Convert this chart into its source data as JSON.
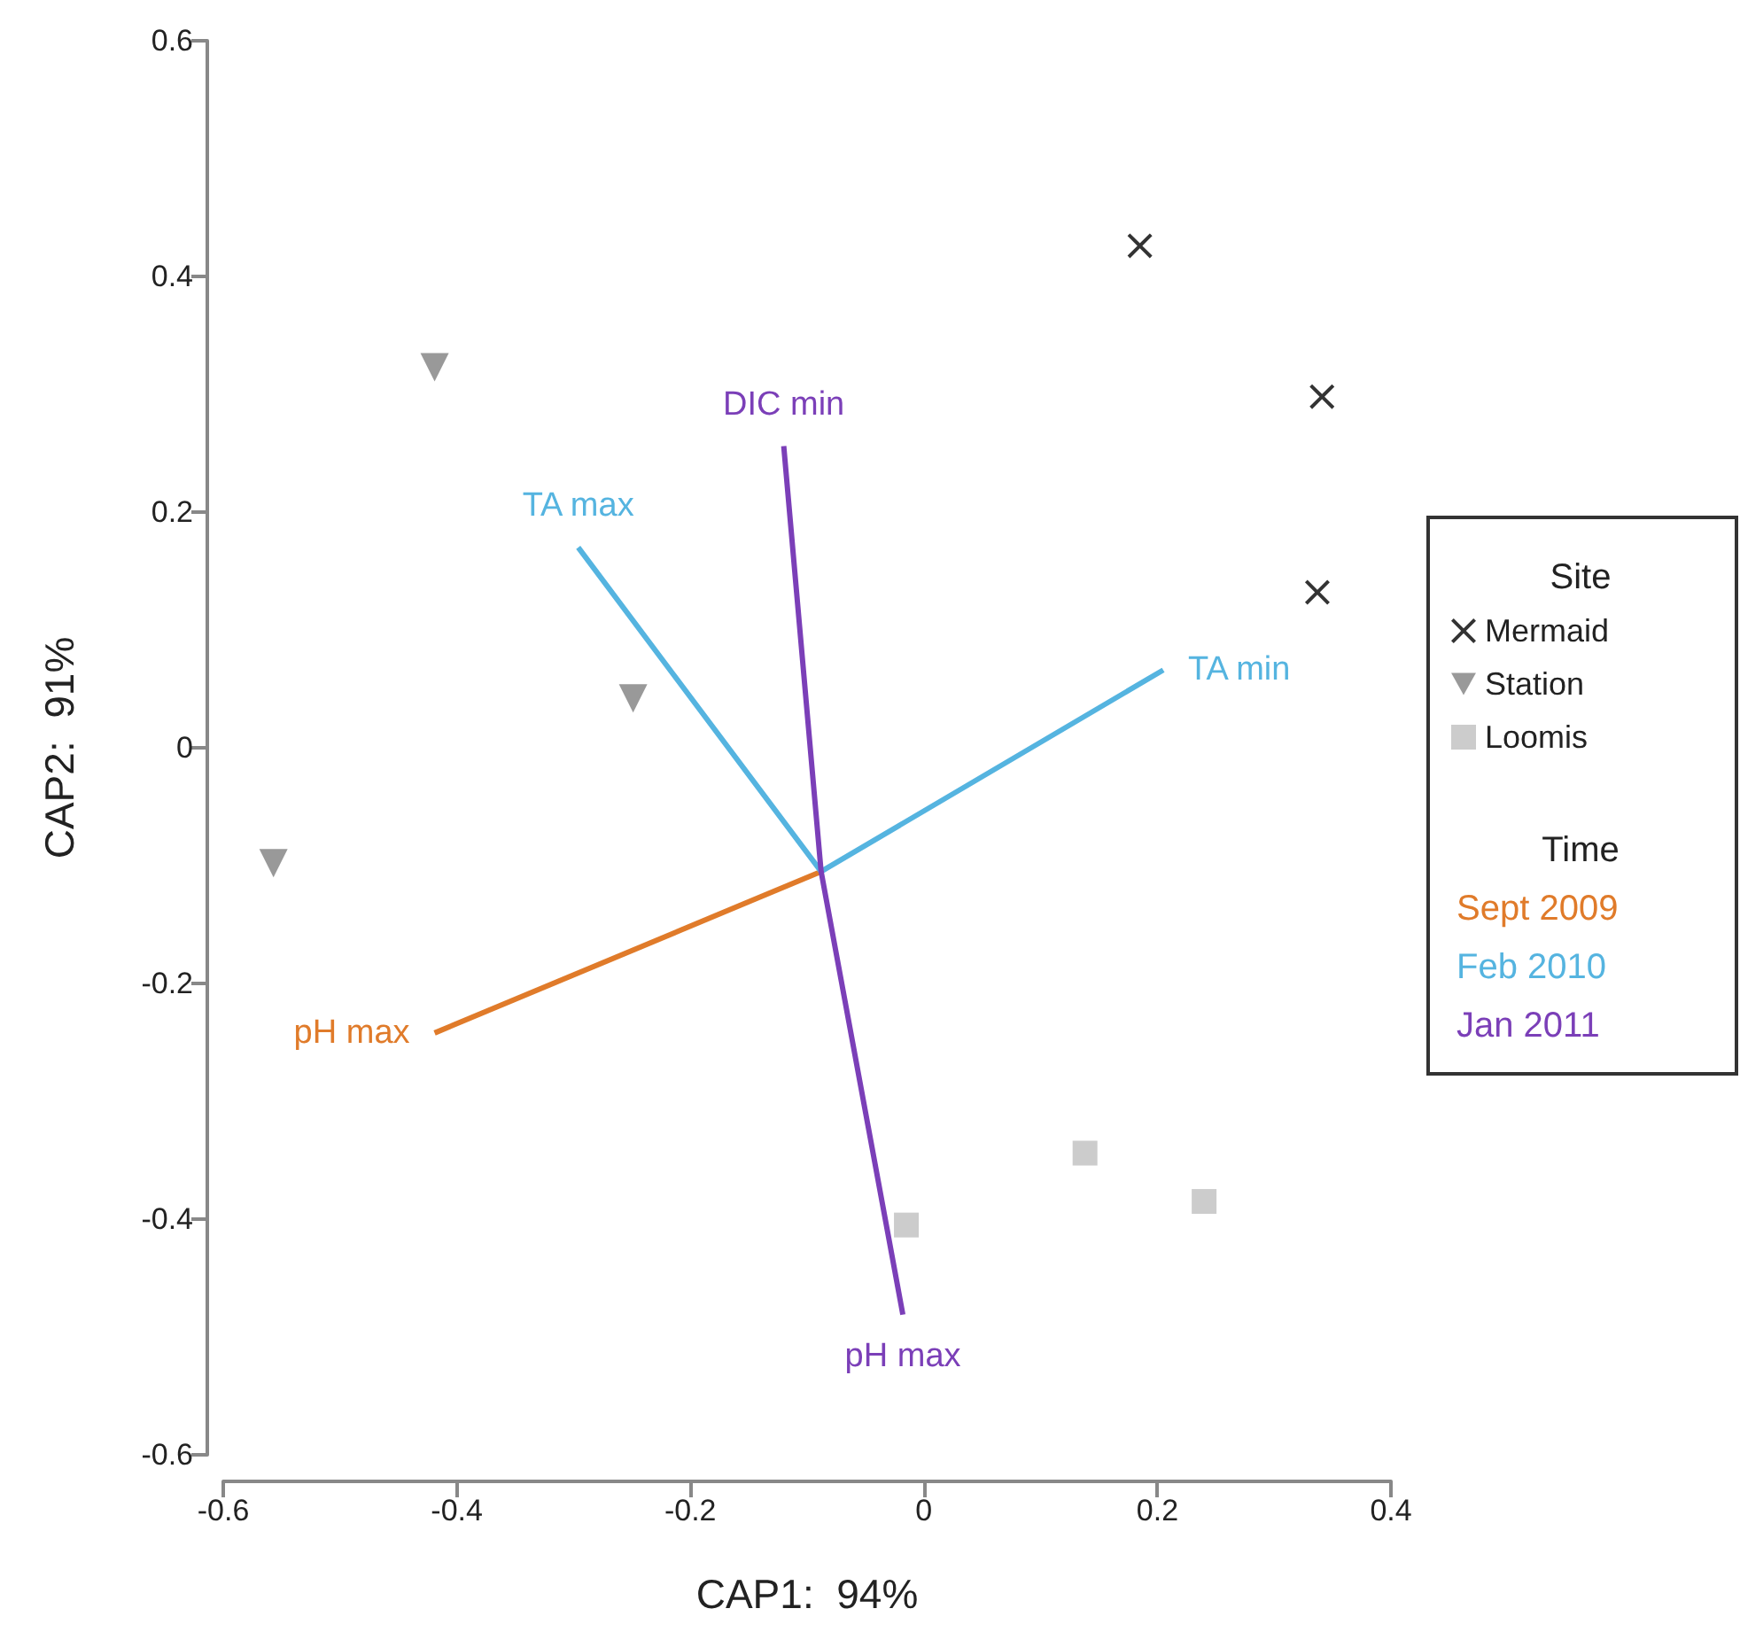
{
  "chart_data": {
    "type": "scatter",
    "xlabel": "CAP1:  94%",
    "ylabel": "CAP2:  91%",
    "xlim": [
      -0.6,
      0.4
    ],
    "xticks": [
      -0.6,
      -0.4,
      -0.2,
      0,
      0.2,
      0.4
    ],
    "ylim": [
      -0.6,
      0.6
    ],
    "yticks": [
      -0.6,
      -0.4,
      -0.2,
      0,
      0.2,
      0.4,
      0.6
    ],
    "grid": false,
    "legend": "right",
    "legend_title": "Site",
    "annotations": [
      "Time",
      "Sept 2009",
      "Feb 2010",
      "Jan 2011"
    ],
    "series": [
      {
        "name": "Mermaid",
        "marker": "cross",
        "color": "#000000",
        "x": [
          0.185,
          0.341,
          0.337
        ],
        "values": [
          0.426,
          0.298,
          0.132
        ]
      },
      {
        "name": "Station",
        "marker": "triangle",
        "color": "#7f7f7f",
        "x": [
          -0.419,
          -0.249,
          -0.557
        ],
        "values": [
          0.323,
          0.042,
          -0.098
        ]
      },
      {
        "name": "Loomis",
        "marker": "square",
        "color": "#bfbfbf",
        "x": [
          -0.015,
          0.138,
          0.24
        ],
        "values": [
          -0.405,
          -0.344,
          -0.385
        ]
      },
      {
        "type": "line",
        "marker": "none",
        "color": "#e07b2a",
        "x": [
          -0.088,
          -0.419
        ],
        "values": [
          -0.105,
          -0.242
        ],
        "value_labels": [
          null,
          "pH max"
        ]
      },
      {
        "type": "line",
        "marker": "none",
        "color": "#55b4e0",
        "x": [
          -0.296,
          -0.088,
          0.205
        ],
        "values": [
          0.17,
          -0.105,
          0.066
        ],
        "value_labels": [
          "TA max",
          null,
          "TA min"
        ]
      },
      {
        "type": "line",
        "marker": "none",
        "color": "#7b3fb8",
        "x": [
          -0.12,
          -0.088,
          -0.018
        ],
        "values": [
          0.256,
          -0.105,
          -0.481
        ],
        "value_labels": [
          "DIC min",
          null,
          "pH max"
        ]
      }
    ]
  }
}
